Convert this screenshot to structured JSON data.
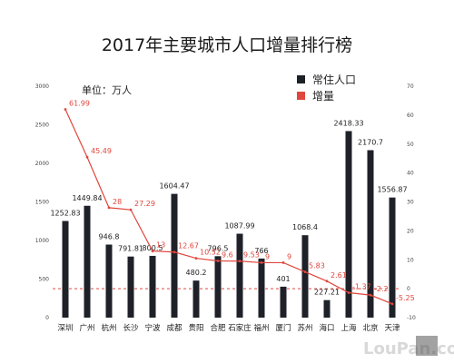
{
  "chart_data": {
    "type": "bar",
    "title": "2017年主要城市人口增量排行榜",
    "unit_label": "单位：万人",
    "categories": [
      "深圳",
      "广州",
      "杭州",
      "长沙",
      "宁波",
      "成都",
      "贵阳",
      "合肥",
      "石家庄",
      "福州",
      "厦门",
      "苏州",
      "海口",
      "上海",
      "北京",
      "天津"
    ],
    "series": [
      {
        "name": "常住人口",
        "type": "bar",
        "axis": "left",
        "color": "#1f2128",
        "values": [
          1252.83,
          1449.84,
          946.8,
          791.81,
          800.5,
          1604.47,
          480.2,
          796.5,
          1087.99,
          766,
          401,
          1068.4,
          227.21,
          2418.33,
          2170.7,
          1556.87
        ],
        "labels": [
          "1252.83",
          "1449.84",
          "946.8",
          "791.81",
          "800.5",
          "1604.47",
          "480.2",
          "796.5",
          "1087.99",
          "766",
          "401",
          "1068.4",
          "227.21",
          "2418.33",
          "2170.7",
          "1556.87"
        ]
      },
      {
        "name": "增量",
        "type": "line",
        "axis": "right",
        "color": "#e0463c",
        "values": [
          61.99,
          45.49,
          28,
          27.29,
          13,
          12.67,
          10.52,
          9.6,
          9.53,
          9,
          9,
          5.83,
          2.61,
          -1.37,
          -2.2,
          -5.25
        ],
        "labels": [
          "61.99",
          "45.49",
          "28",
          "27.29",
          "13",
          "12.67",
          "10.52",
          "9.6",
          "9.53",
          "9",
          "9",
          "5.83",
          "2.61",
          "-1.37",
          "-2.2",
          "-5.25"
        ]
      }
    ],
    "y_left": {
      "min": 0,
      "max": 3000,
      "ticks": [
        "0",
        "500",
        "1000",
        "1500",
        "2000",
        "2500",
        "3000"
      ]
    },
    "y_right": {
      "min": -10,
      "max": 70,
      "ticks": [
        "-10",
        "0",
        "10",
        "20",
        "30",
        "40",
        "50",
        "60",
        "70"
      ]
    },
    "legend_position": "top-right",
    "grid": false
  },
  "watermark": {
    "text": "LouPan.com"
  }
}
